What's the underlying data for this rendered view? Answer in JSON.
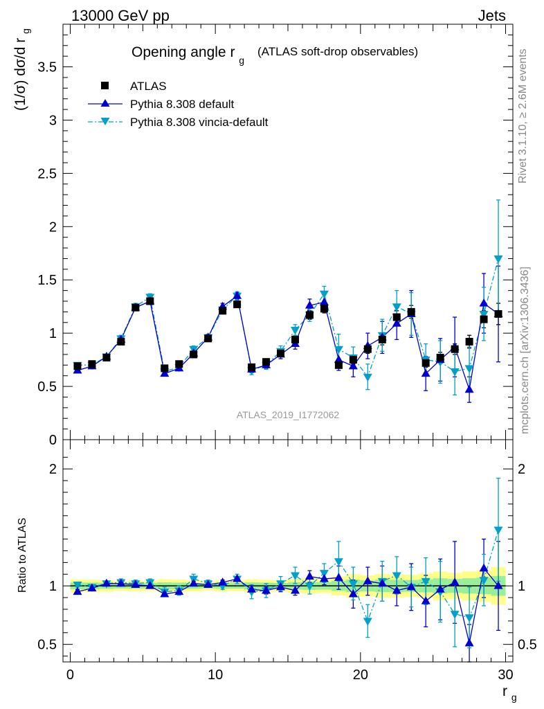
{
  "header": {
    "left": "13000 GeV pp",
    "right": "Jets"
  },
  "side_labels": {
    "rivet": "Rivet 3.1.10, ≥ 2.6M events",
    "mcplots": "mcplots.cern.ch [arXiv:1306.3436]"
  },
  "chart_data": [
    {
      "type": "scatter",
      "title": "Opening angle r",
      "title_sub": "g",
      "subtitle": "(ATLAS soft-drop observables)",
      "watermark": "ATLAS_2019_I1772062",
      "ylabel": "(1/σ) dσ/d r",
      "ylabel_sub": "g",
      "xlim": [
        -0.5,
        30.5
      ],
      "ylim": [
        0,
        3.9
      ],
      "yticks": [
        "0",
        "0.5",
        "1",
        "1.5",
        "2",
        "2.5",
        "3",
        "3.5"
      ],
      "grid": false,
      "legend": {
        "position": "top-left",
        "entries": [
          "ATLAS",
          "Pythia 8.308 default",
          "Pythia 8.308 vincia-default"
        ]
      },
      "x": [
        0.5,
        1.5,
        2.5,
        3.5,
        4.5,
        5.5,
        6.5,
        7.5,
        8.5,
        9.5,
        10.5,
        11.5,
        12.5,
        13.5,
        14.5,
        15.5,
        16.5,
        17.5,
        18.5,
        19.5,
        20.5,
        21.5,
        22.5,
        23.5,
        24.5,
        25.5,
        26.5,
        27.5,
        28.5,
        29.5
      ],
      "series": [
        {
          "name": "ATLAS",
          "color": "#000000",
          "marker": "square",
          "values": [
            0.69,
            0.71,
            0.77,
            0.92,
            1.24,
            1.3,
            0.67,
            0.71,
            0.8,
            0.95,
            1.21,
            1.27,
            0.68,
            0.73,
            0.81,
            0.94,
            1.17,
            1.23,
            0.7,
            0.75,
            0.85,
            0.94,
            1.15,
            1.2,
            0.72,
            0.77,
            0.85,
            0.92,
            1.13,
            1.18
          ],
          "errors": [
            0.02,
            0.02,
            0.02,
            0.02,
            0.03,
            0.03,
            0.02,
            0.02,
            0.02,
            0.02,
            0.03,
            0.03,
            0.02,
            0.02,
            0.02,
            0.03,
            0.04,
            0.04,
            0.03,
            0.04,
            0.04,
            0.05,
            0.06,
            0.06,
            0.04,
            0.05,
            0.05,
            0.06,
            0.08,
            0.1
          ]
        },
        {
          "name": "Pythia 8.308 default",
          "color": "#0000cc",
          "marker": "triangle-up",
          "line": "solid",
          "values": [
            0.65,
            0.69,
            0.78,
            0.94,
            1.24,
            1.3,
            0.62,
            0.67,
            0.81,
            0.96,
            1.25,
            1.35,
            0.66,
            0.7,
            0.8,
            0.9,
            1.26,
            1.29,
            0.75,
            0.69,
            0.88,
            0.96,
            1.09,
            1.18,
            0.62,
            0.75,
            0.87,
            0.47,
            1.28,
            1.18
          ],
          "errors": [
            0.02,
            0.02,
            0.02,
            0.03,
            0.03,
            0.03,
            0.02,
            0.02,
            0.02,
            0.03,
            0.03,
            0.03,
            0.03,
            0.03,
            0.04,
            0.05,
            0.06,
            0.07,
            0.1,
            0.1,
            0.12,
            0.15,
            0.15,
            0.22,
            0.16,
            0.2,
            0.28,
            0.12,
            0.28,
            0.45
          ]
        },
        {
          "name": "Pythia 8.308 vincia-default",
          "color": "#00a0c8",
          "marker": "triangle-down",
          "line": "dash-dot",
          "values": [
            0.7,
            0.7,
            0.78,
            0.95,
            1.25,
            1.34,
            0.64,
            0.68,
            0.85,
            0.96,
            1.22,
            1.35,
            0.65,
            0.7,
            0.83,
            1.03,
            1.17,
            1.37,
            0.85,
            0.77,
            0.59,
            0.98,
            1.25,
            1.18,
            0.75,
            0.73,
            0.64,
            0.67,
            1.18,
            1.7
          ],
          "errors": [
            0.02,
            0.02,
            0.02,
            0.03,
            0.03,
            0.03,
            0.03,
            0.03,
            0.03,
            0.03,
            0.03,
            0.04,
            0.04,
            0.04,
            0.05,
            0.05,
            0.06,
            0.07,
            0.14,
            0.1,
            0.12,
            0.15,
            0.15,
            0.2,
            0.15,
            0.2,
            0.22,
            0.2,
            0.25,
            0.55
          ]
        }
      ]
    },
    {
      "type": "scatter",
      "title": "",
      "ylabel": "Ratio to ATLAS",
      "xlabel": "r",
      "xlabel_sub": "g",
      "xlim": [
        -0.5,
        30.5
      ],
      "ylim": [
        0.35,
        2.25
      ],
      "yticks": [
        "0.5",
        "1",
        "2"
      ],
      "xticks": [
        "0",
        "10",
        "20",
        "30"
      ],
      "grid": false,
      "series": [
        {
          "name": "Pythia 8.308 default",
          "color": "#0000cc",
          "values": [
            0.95,
            0.98,
            1.02,
            1.02,
            1.01,
            1.0,
            0.93,
            0.95,
            1.02,
            1.01,
            1.03,
            1.06,
            0.97,
            0.96,
            0.99,
            0.96,
            1.08,
            1.06,
            1.07,
            0.93,
            1.04,
            1.02,
            0.96,
            0.99,
            0.87,
            0.97,
            1.03,
            0.51,
            1.15,
            1.0
          ],
          "errors": [
            0.02,
            0.02,
            0.02,
            0.02,
            0.02,
            0.02,
            0.02,
            0.02,
            0.02,
            0.02,
            0.02,
            0.02,
            0.03,
            0.03,
            0.04,
            0.04,
            0.05,
            0.05,
            0.1,
            0.12,
            0.12,
            0.15,
            0.13,
            0.2,
            0.22,
            0.26,
            0.35,
            0.16,
            0.25,
            0.38
          ]
        },
        {
          "name": "Pythia 8.308 vincia-default",
          "color": "#00a0c8",
          "values": [
            1.01,
            0.99,
            1.02,
            1.03,
            1.02,
            1.03,
            0.95,
            0.96,
            1.06,
            1.02,
            1.0,
            1.06,
            0.95,
            0.96,
            1.02,
            1.09,
            1.0,
            1.11,
            1.21,
            1.02,
            0.7,
            1.04,
            1.09,
            0.99,
            1.04,
            0.95,
            0.76,
            0.73,
            1.05,
            1.48
          ],
          "errors": [
            0.02,
            0.02,
            0.02,
            0.03,
            0.03,
            0.03,
            0.04,
            0.04,
            0.04,
            0.03,
            0.03,
            0.04,
            0.06,
            0.06,
            0.06,
            0.07,
            0.07,
            0.08,
            0.17,
            0.14,
            0.14,
            0.17,
            0.16,
            0.17,
            0.2,
            0.26,
            0.28,
            0.26,
            0.22,
            0.44
          ]
        }
      ]
    }
  ]
}
